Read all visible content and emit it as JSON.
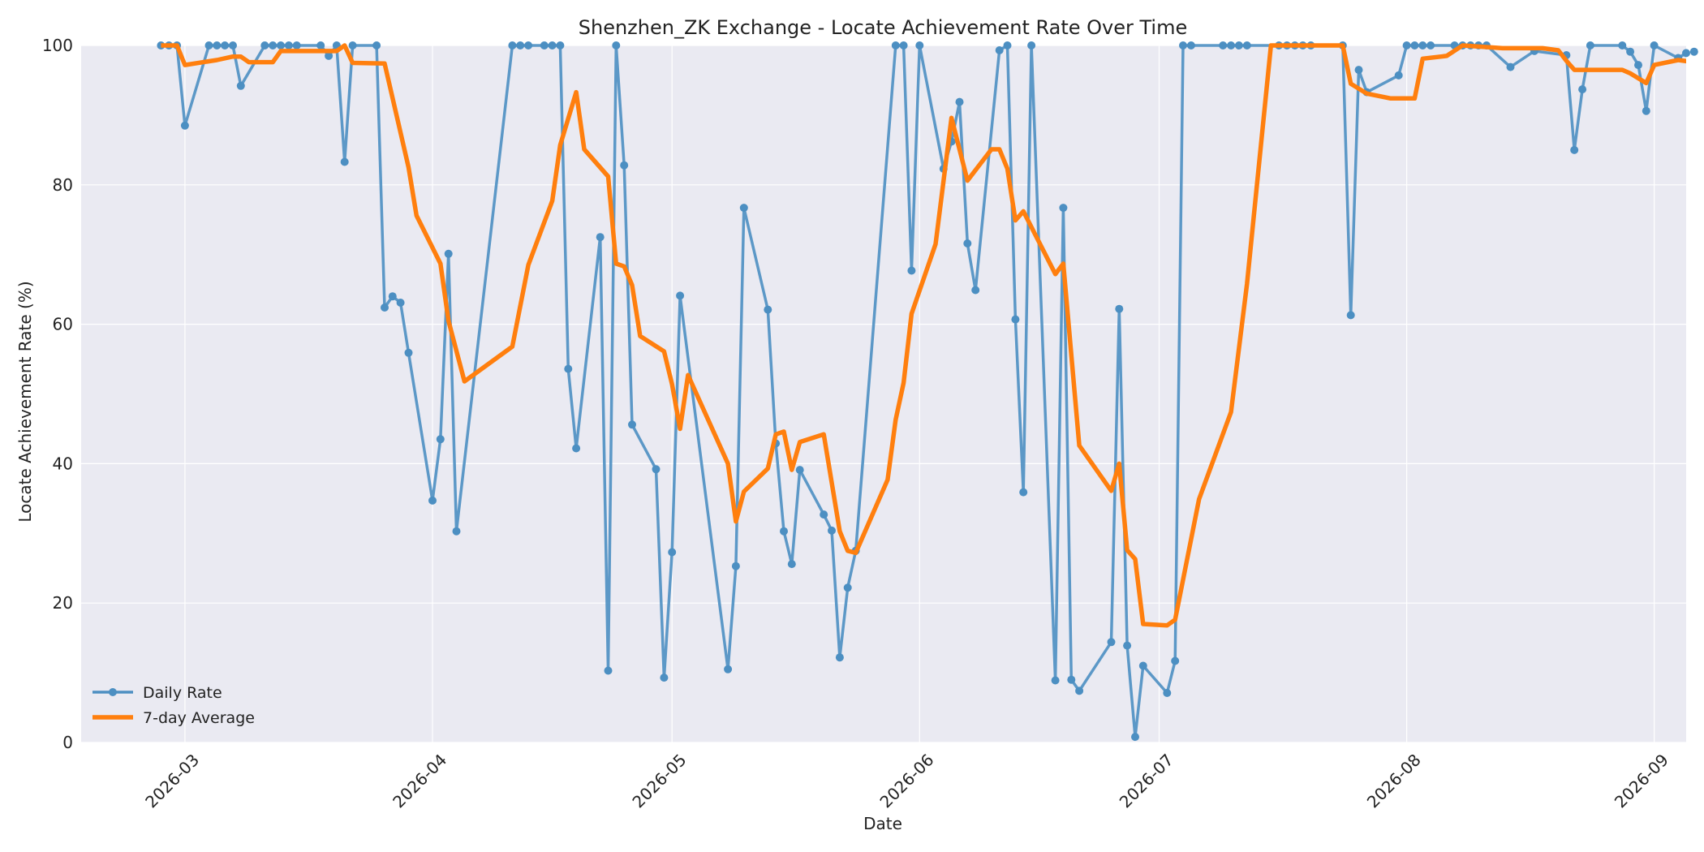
{
  "chart_data": {
    "type": "line",
    "title": "Shenzhen_ZK Exchange - Locate Achievement Rate Over Time",
    "xlabel": "Date",
    "ylabel": "Locate Achievement Rate (%)",
    "xlim": [
      "2026-02-16",
      "2026-09-05"
    ],
    "ylim": [
      0,
      100
    ],
    "x_ticks": [
      "2026-03-01",
      "2026-04-01",
      "2026-05-01",
      "2026-06-01",
      "2026-07-01",
      "2026-08-01",
      "2026-09-01"
    ],
    "x_tick_labels": [
      "2026-03",
      "2026-04",
      "2026-05",
      "2026-06",
      "2026-07",
      "2026-08",
      "2026-09"
    ],
    "y_ticks": [
      0,
      20,
      40,
      60,
      80,
      100
    ],
    "y_tick_labels": [
      "0",
      "20",
      "40",
      "60",
      "80",
      "100"
    ],
    "grid": true,
    "legend_position": "lower-left",
    "colors": {
      "daily": "#4c8fc2",
      "avg": "#ff7f0e",
      "plot_bg": "#eaeaf2"
    },
    "series": [
      {
        "name": "Daily Rate",
        "marker": "circle",
        "points": [
          [
            "2026-02-26",
            100
          ],
          [
            "2026-02-27",
            100
          ],
          [
            "2026-02-28",
            100
          ],
          [
            "2026-03-01",
            88.5
          ],
          [
            "2026-03-04",
            100
          ],
          [
            "2026-03-05",
            100
          ],
          [
            "2026-03-06",
            100
          ],
          [
            "2026-03-07",
            100
          ],
          [
            "2026-03-08",
            94.2
          ],
          [
            "2026-03-11",
            100
          ],
          [
            "2026-03-12",
            100
          ],
          [
            "2026-03-13",
            100
          ],
          [
            "2026-03-14",
            100
          ],
          [
            "2026-03-15",
            100
          ],
          [
            "2026-03-18",
            100
          ],
          [
            "2026-03-19",
            98.5
          ],
          [
            "2026-03-20",
            100
          ],
          [
            "2026-03-21",
            83.3
          ],
          [
            "2026-03-22",
            100
          ],
          [
            "2026-03-25",
            100
          ],
          [
            "2026-03-26",
            62.4
          ],
          [
            "2026-03-27",
            64
          ],
          [
            "2026-03-28",
            63.1
          ],
          [
            "2026-03-29",
            55.9
          ],
          [
            "2026-04-01",
            34.7
          ],
          [
            "2026-04-02",
            43.5
          ],
          [
            "2026-04-03",
            70.1
          ],
          [
            "2026-04-04",
            30.3
          ],
          [
            "2026-04-11",
            100
          ],
          [
            "2026-04-12",
            100
          ],
          [
            "2026-04-13",
            100
          ],
          [
            "2026-04-15",
            100
          ],
          [
            "2026-04-16",
            100
          ],
          [
            "2026-04-17",
            100
          ],
          [
            "2026-04-18",
            53.6
          ],
          [
            "2026-04-19",
            42.2
          ],
          [
            "2026-04-22",
            72.5
          ],
          [
            "2026-04-23",
            10.3
          ],
          [
            "2026-04-24",
            100
          ],
          [
            "2026-04-25",
            82.8
          ],
          [
            "2026-04-26",
            45.6
          ],
          [
            "2026-04-29",
            39.2
          ],
          [
            "2026-04-30",
            9.3
          ],
          [
            "2026-05-01",
            27.3
          ],
          [
            "2026-05-02",
            64.1
          ],
          [
            "2026-05-08",
            10.5
          ],
          [
            "2026-05-09",
            25.3
          ],
          [
            "2026-05-10",
            76.7
          ],
          [
            "2026-05-13",
            62.1
          ],
          [
            "2026-05-14",
            42.9
          ],
          [
            "2026-05-15",
            30.3
          ],
          [
            "2026-05-16",
            25.6
          ],
          [
            "2026-05-17",
            39.1
          ],
          [
            "2026-05-20",
            32.7
          ],
          [
            "2026-05-21",
            30.4
          ],
          [
            "2026-05-22",
            12.2
          ],
          [
            "2026-05-23",
            22.2
          ],
          [
            "2026-05-24",
            27.5
          ],
          [
            "2026-05-29",
            100
          ],
          [
            "2026-05-30",
            100
          ],
          [
            "2026-05-31",
            67.7
          ],
          [
            "2026-06-01",
            100
          ],
          [
            "2026-06-04",
            82.3
          ],
          [
            "2026-06-05",
            86.2
          ],
          [
            "2026-06-06",
            91.9
          ],
          [
            "2026-06-07",
            71.6
          ],
          [
            "2026-06-08",
            64.9
          ],
          [
            "2026-06-11",
            99.3
          ],
          [
            "2026-06-12",
            100
          ],
          [
            "2026-06-13",
            60.7
          ],
          [
            "2026-06-14",
            35.9
          ],
          [
            "2026-06-15",
            100
          ],
          [
            "2026-06-18",
            8.9
          ],
          [
            "2026-06-19",
            76.7
          ],
          [
            "2026-06-20",
            9
          ],
          [
            "2026-06-21",
            7.4
          ],
          [
            "2026-06-25",
            14.4
          ],
          [
            "2026-06-26",
            62.2
          ],
          [
            "2026-06-27",
            13.9
          ],
          [
            "2026-06-28",
            0.8
          ],
          [
            "2026-06-29",
            11
          ],
          [
            "2026-07-02",
            7.1
          ],
          [
            "2026-07-03",
            11.7
          ],
          [
            "2026-07-04",
            100
          ],
          [
            "2026-07-05",
            100
          ],
          [
            "2026-07-09",
            100
          ],
          [
            "2026-07-10",
            100
          ],
          [
            "2026-07-11",
            100
          ],
          [
            "2026-07-12",
            100
          ],
          [
            "2026-07-16",
            100
          ],
          [
            "2026-07-17",
            100
          ],
          [
            "2026-07-18",
            100
          ],
          [
            "2026-07-19",
            100
          ],
          [
            "2026-07-20",
            100
          ],
          [
            "2026-07-24",
            100
          ],
          [
            "2026-07-25",
            61.3
          ],
          [
            "2026-07-26",
            96.5
          ],
          [
            "2026-07-27",
            93.3
          ],
          [
            "2026-07-31",
            95.7
          ],
          [
            "2026-08-01",
            100
          ],
          [
            "2026-08-02",
            100
          ],
          [
            "2026-08-03",
            100
          ],
          [
            "2026-08-04",
            100
          ],
          [
            "2026-08-07",
            100
          ],
          [
            "2026-08-08",
            100
          ],
          [
            "2026-08-09",
            100
          ],
          [
            "2026-08-10",
            100
          ],
          [
            "2026-08-11",
            100
          ],
          [
            "2026-08-14",
            96.9
          ],
          [
            "2026-08-17",
            99.2
          ],
          [
            "2026-08-21",
            98.6
          ],
          [
            "2026-08-22",
            85
          ],
          [
            "2026-08-23",
            93.7
          ],
          [
            "2026-08-24",
            100
          ],
          [
            "2026-08-28",
            100
          ],
          [
            "2026-08-29",
            99.1
          ],
          [
            "2026-08-30",
            97.2
          ],
          [
            "2026-08-31",
            90.6
          ],
          [
            "2026-09-01",
            100
          ],
          [
            "2026-09-04",
            98.2
          ],
          [
            "2026-09-05",
            98.9
          ],
          [
            "2026-09-06",
            99.1
          ]
        ]
      },
      {
        "name": "7-day Average",
        "marker": "none",
        "points": [
          [
            "2026-02-26",
            100
          ],
          [
            "2026-02-28",
            100
          ],
          [
            "2026-03-01",
            97.2
          ],
          [
            "2026-03-05",
            97.9
          ],
          [
            "2026-03-07",
            98.4
          ],
          [
            "2026-03-08",
            98.4
          ],
          [
            "2026-03-09",
            97.6
          ],
          [
            "2026-03-12",
            97.6
          ],
          [
            "2026-03-13",
            99.2
          ],
          [
            "2026-03-19",
            99.2
          ],
          [
            "2026-03-20",
            99.2
          ],
          [
            "2026-03-21",
            100
          ],
          [
            "2026-03-22",
            97.5
          ],
          [
            "2026-03-26",
            97.4
          ],
          [
            "2026-03-29",
            82.5
          ],
          [
            "2026-03-30",
            75.6
          ],
          [
            "2026-04-02",
            68.7
          ],
          [
            "2026-04-03",
            60.5
          ],
          [
            "2026-04-05",
            51.8
          ],
          [
            "2026-04-11",
            56.8
          ],
          [
            "2026-04-13",
            68.5
          ],
          [
            "2026-04-16",
            77.7
          ],
          [
            "2026-04-17",
            85.7
          ],
          [
            "2026-04-19",
            93.3
          ],
          [
            "2026-04-20",
            85.1
          ],
          [
            "2026-04-23",
            81.2
          ],
          [
            "2026-04-24",
            68.7
          ],
          [
            "2026-04-25",
            68.3
          ],
          [
            "2026-04-26",
            65.6
          ],
          [
            "2026-04-27",
            58.3
          ],
          [
            "2026-04-30",
            56.1
          ],
          [
            "2026-05-01",
            51.4
          ],
          [
            "2026-05-02",
            45
          ],
          [
            "2026-05-03",
            52.7
          ],
          [
            "2026-05-08",
            40
          ],
          [
            "2026-05-09",
            31.7
          ],
          [
            "2026-05-10",
            36
          ],
          [
            "2026-05-13",
            39.3
          ],
          [
            "2026-05-14",
            44.2
          ],
          [
            "2026-05-15",
            44.6
          ],
          [
            "2026-05-16",
            39.1
          ],
          [
            "2026-05-17",
            43.1
          ],
          [
            "2026-05-20",
            44.2
          ],
          [
            "2026-05-22",
            30.3
          ],
          [
            "2026-05-23",
            27.5
          ],
          [
            "2026-05-24",
            27.2
          ],
          [
            "2026-05-28",
            37.7
          ],
          [
            "2026-05-29",
            46.3
          ],
          [
            "2026-05-30",
            51.6
          ],
          [
            "2026-05-31",
            61.5
          ],
          [
            "2026-06-03",
            71.5
          ],
          [
            "2026-06-05",
            89.6
          ],
          [
            "2026-06-07",
            80.6
          ],
          [
            "2026-06-10",
            85.1
          ],
          [
            "2026-06-11",
            85.1
          ],
          [
            "2026-06-12",
            82.3
          ],
          [
            "2026-06-13",
            74.9
          ],
          [
            "2026-06-14",
            76.2
          ],
          [
            "2026-06-18",
            67.2
          ],
          [
            "2026-06-19",
            68.7
          ],
          [
            "2026-06-21",
            42.6
          ],
          [
            "2026-06-25",
            36.1
          ],
          [
            "2026-06-26",
            40
          ],
          [
            "2026-06-27",
            27.6
          ],
          [
            "2026-06-28",
            26.3
          ],
          [
            "2026-06-29",
            17
          ],
          [
            "2026-07-02",
            16.8
          ],
          [
            "2026-07-03",
            17.6
          ],
          [
            "2026-07-06",
            34.9
          ],
          [
            "2026-07-10",
            47.4
          ],
          [
            "2026-07-12",
            65.8
          ],
          [
            "2026-07-15",
            100
          ],
          [
            "2026-07-24",
            100
          ],
          [
            "2026-07-25",
            94.5
          ],
          [
            "2026-07-27",
            93.1
          ],
          [
            "2026-07-30",
            92.4
          ],
          [
            "2026-08-02",
            92.4
          ],
          [
            "2026-08-03",
            98.1
          ],
          [
            "2026-08-06",
            98.5
          ],
          [
            "2026-08-08",
            100
          ],
          [
            "2026-08-13",
            99.6
          ],
          [
            "2026-08-18",
            99.6
          ],
          [
            "2026-08-20",
            99.3
          ],
          [
            "2026-08-21",
            97.8
          ],
          [
            "2026-08-22",
            96.5
          ],
          [
            "2026-08-28",
            96.5
          ],
          [
            "2026-08-29",
            96
          ],
          [
            "2026-08-31",
            94.6
          ],
          [
            "2026-09-01",
            97.2
          ],
          [
            "2026-09-04",
            97.9
          ],
          [
            "2026-09-06",
            97.6
          ]
        ]
      }
    ]
  }
}
